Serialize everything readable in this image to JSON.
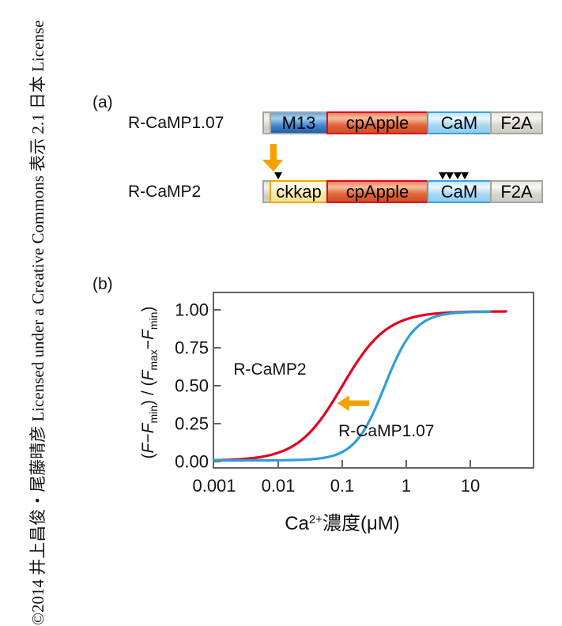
{
  "copyright_vertical": "©2014 井上昌俊・尾藤晴彦 Licensed under a Creative Commons 表示 2.1 日本 License",
  "panel_a": {
    "label": "(a)",
    "rows": [
      {
        "name": "R-CaMP1.07",
        "segments": [
          {
            "label": "",
            "type": "linker"
          },
          {
            "label": "M13",
            "type": "m13"
          },
          {
            "label": "cpApple",
            "type": "cpapple"
          },
          {
            "label": "CaM",
            "type": "cam"
          },
          {
            "label": "F2A",
            "type": "f2a"
          }
        ]
      },
      {
        "name": "R-CaMP2",
        "segments": [
          {
            "label": "",
            "type": "linker"
          },
          {
            "label": "ckkap",
            "type": "ckkap"
          },
          {
            "label": "cpApple",
            "type": "cpapple"
          },
          {
            "label": "CaM",
            "type": "cam"
          },
          {
            "label": "F2A",
            "type": "f2a"
          }
        ],
        "mutation_markers": {
          "above_ckkap": 1,
          "above_cam": 4
        }
      }
    ],
    "conversion_arrow": {
      "direction": "down",
      "color": "#f5a200"
    }
  },
  "panel_b": {
    "label": "(b)"
  },
  "chart_data": {
    "type": "line",
    "x_axis": {
      "scale": "log",
      "label": "Ca2+濃度(μM)",
      "label_rich": [
        {
          "t": "Ca"
        },
        {
          "t": "2+",
          "sup": true
        },
        {
          "t": "濃度(μM)"
        }
      ],
      "min": 0.001,
      "max": 100,
      "ticks": [
        {
          "v": 0.001,
          "label": "0.001"
        },
        {
          "v": 0.01,
          "label": "0.01"
        },
        {
          "v": 0.1,
          "label": "0.1"
        },
        {
          "v": 1,
          "label": "1"
        },
        {
          "v": 10,
          "label": "10"
        }
      ]
    },
    "y_axis": {
      "label": "(F−Fmin) / (Fmax−Fmin)",
      "label_rich": [
        {
          "t": "("
        },
        {
          "t": "F",
          "i": true
        },
        {
          "t": "−"
        },
        {
          "t": "F",
          "i": true
        },
        {
          "t": "min",
          "sub": true
        },
        {
          "t": ") / ("
        },
        {
          "t": "F",
          "i": true
        },
        {
          "t": "max",
          "sub": true
        },
        {
          "t": "−"
        },
        {
          "t": "F",
          "i": true
        },
        {
          "t": "min",
          "sub": true
        },
        {
          "t": ")"
        }
      ],
      "min": 0,
      "max": 1.0,
      "ticks": [
        {
          "v": 0,
          "label": "0.00"
        },
        {
          "v": 0.25,
          "label": "0.25"
        },
        {
          "v": 0.5,
          "label": "0.50"
        },
        {
          "v": 0.75,
          "label": "0.75"
        },
        {
          "v": 1,
          "label": "1.00"
        }
      ]
    },
    "grid": false,
    "legend": "inline-labels",
    "series": [
      {
        "name": "R-CaMP2",
        "color": "#e30020",
        "hill": {
          "ec50": 0.1,
          "n": 1.25,
          "ymax": 0.99,
          "ymin": 0.006
        },
        "x_start": 0.001,
        "x_end": 36,
        "points": [
          [
            0.001,
            0.01
          ],
          [
            0.003,
            0.02
          ],
          [
            0.01,
            0.05
          ],
          [
            0.03,
            0.16
          ],
          [
            0.1,
            0.5
          ],
          [
            0.3,
            0.77
          ],
          [
            1,
            0.95
          ],
          [
            3,
            0.98
          ],
          [
            10,
            0.99
          ],
          [
            36,
            0.99
          ]
        ],
        "label_pos": {
          "x": 0.002,
          "y": 0.573
        }
      },
      {
        "name": "R-CaMP1.07",
        "color": "#2e9fd8",
        "hill": {
          "ec50": 0.46,
          "n": 1.85,
          "ymax": 0.988,
          "ymin": 0.008
        },
        "x_start": 0.001,
        "x_end": 20,
        "points": [
          [
            0.001,
            0.01
          ],
          [
            0.01,
            0.01
          ],
          [
            0.05,
            0.02
          ],
          [
            0.1,
            0.06
          ],
          [
            0.2,
            0.17
          ],
          [
            0.46,
            0.49
          ],
          [
            1,
            0.8
          ],
          [
            2,
            0.94
          ],
          [
            5,
            0.98
          ],
          [
            20,
            0.99
          ]
        ],
        "label_pos": {
          "x": 0.087,
          "y": 0.167
        }
      }
    ],
    "annotation_arrow": {
      "direction": "left",
      "color": "#f5a200",
      "x_tip": 0.084,
      "x_tail": 0.264,
      "y": 0.385
    }
  }
}
